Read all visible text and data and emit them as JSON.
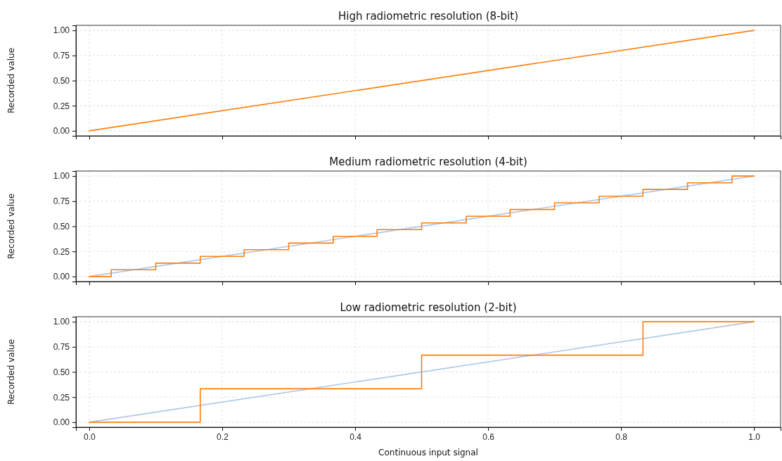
{
  "chart_data": [
    {
      "type": "line",
      "title": "High radiometric resolution (8-bit)",
      "ylabel": "Recorded value",
      "xlim": [
        -0.02,
        1.04
      ],
      "ylim": [
        -0.05,
        1.05
      ],
      "xticks": [
        0,
        0.2,
        0.4,
        0.6,
        0.8,
        1
      ],
      "yticks": [
        {
          "value": 0,
          "label": "0.00"
        },
        {
          "value": 0.25,
          "label": "0.25"
        },
        {
          "value": 0.5,
          "label": "0.50"
        },
        {
          "value": 0.75,
          "label": "0.75"
        },
        {
          "value": 1,
          "label": "1.00"
        }
      ],
      "grid": true,
      "tick_labels": "y",
      "series": [
        {
          "color": "#ff7f0e",
          "x": [
            0,
            1
          ],
          "values": [
            0,
            1
          ]
        }
      ]
    },
    {
      "type": "line",
      "title": "Medium radiometric resolution (4-bit)",
      "ylabel": "Recorded value",
      "xlim": [
        -0.02,
        1.04
      ],
      "ylim": [
        -0.05,
        1.05
      ],
      "xticks": [
        0,
        0.2,
        0.4,
        0.6,
        0.8,
        1
      ],
      "yticks": [
        {
          "value": 0,
          "label": "0.00"
        },
        {
          "value": 0.25,
          "label": "0.25"
        },
        {
          "value": 0.5,
          "label": "0.50"
        },
        {
          "value": 0.75,
          "label": "0.75"
        },
        {
          "value": 1,
          "label": "1.00"
        }
      ],
      "grid": true,
      "tick_labels": "y",
      "series": [
        {
          "color": "#aec7e8",
          "x": [
            0,
            1
          ],
          "values": [
            0,
            1
          ]
        },
        {
          "type": "step",
          "color": "#ff7f0e",
          "x": [
            0,
            0.033,
            0.1,
            0.167,
            0.233,
            0.3,
            0.367,
            0.433,
            0.5,
            0.567,
            0.633,
            0.7,
            0.767,
            0.833,
            0.9,
            0.967,
            1.0
          ],
          "values": [
            0,
            0.067,
            0.133,
            0.2,
            0.267,
            0.333,
            0.4,
            0.467,
            0.533,
            0.6,
            0.667,
            0.733,
            0.8,
            0.867,
            0.933,
            1.0,
            1.0
          ]
        }
      ]
    },
    {
      "type": "line",
      "title": "Low radiometric resolution (2-bit)",
      "xlabel": "Continuous input signal",
      "ylabel": "Recorded value",
      "xlim": [
        -0.02,
        1.04
      ],
      "ylim": [
        -0.05,
        1.05
      ],
      "xticks": [
        {
          "value": 0,
          "label": "0.0"
        },
        {
          "value": 0.2,
          "label": "0.2"
        },
        {
          "value": 0.4,
          "label": "0.4"
        },
        {
          "value": 0.6,
          "label": "0.6"
        },
        {
          "value": 0.8,
          "label": "0.8"
        },
        {
          "value": 1,
          "label": "1.0"
        }
      ],
      "yticks": [
        {
          "value": 0,
          "label": "0.00"
        },
        {
          "value": 0.25,
          "label": "0.25"
        },
        {
          "value": 0.5,
          "label": "0.50"
        },
        {
          "value": 0.75,
          "label": "0.75"
        },
        {
          "value": 1,
          "label": "1.00"
        }
      ],
      "grid": true,
      "series": [
        {
          "color": "#aec7e8",
          "x": [
            0,
            1
          ],
          "values": [
            0,
            1
          ]
        },
        {
          "type": "step",
          "color": "#ff7f0e",
          "x": [
            0,
            0.167,
            0.5,
            0.833,
            1.0
          ],
          "values": [
            0,
            0.333,
            0.667,
            1.0,
            1.0
          ]
        }
      ]
    }
  ]
}
